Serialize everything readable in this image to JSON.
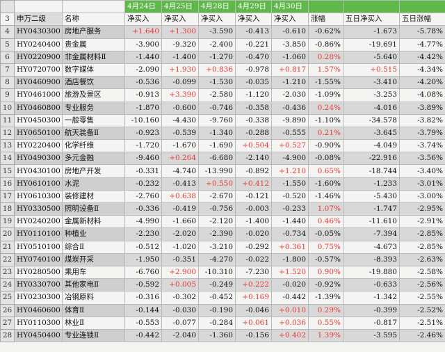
{
  "dates": [
    "4月24日",
    "4月25日",
    "4月28日",
    "4月29日",
    "4月30日"
  ],
  "headers": {
    "row_num": "3",
    "code": "申万二级",
    "name": "名称",
    "cols": [
      "净买入",
      "净买入",
      "净买入",
      "净买入",
      "净买入",
      "涨幅",
      "五日净买入",
      "五日涨幅"
    ]
  },
  "rows": [
    {
      "n": "4",
      "code": "HY0430300",
      "name": "房地产服务",
      "v": [
        "+1.640",
        "+1.300",
        "-3.590",
        "-0.413",
        "-0.610",
        "-0.62%",
        "-1.673",
        "-5.78%"
      ]
    },
    {
      "n": "5",
      "code": "HY0240400",
      "name": "贵金属",
      "v": [
        "-3.900",
        "-9.320",
        "-2.400",
        "-0.221",
        "-3.850",
        "-0.86%",
        "-19.691",
        "-4.77%"
      ]
    },
    {
      "n": "6",
      "code": "HY0220900",
      "name": "非金属材料Ⅱ",
      "v": [
        "-1.440",
        "-1.400",
        "-1.270",
        "-0.470",
        "-1.060",
        "0.28%",
        "-5.640",
        "-4.42%"
      ]
    },
    {
      "n": "7",
      "code": "HY0720700",
      "name": "数字媒体",
      "v": [
        "-2.090",
        "+1.930",
        "+0.836",
        "-0.978",
        "+0.817",
        "1.57%",
        "+0.515",
        "-4.34%"
      ]
    },
    {
      "n": "8",
      "code": "HY0460900",
      "name": "酒店餐饮",
      "v": [
        "-0.536",
        "-0.099",
        "-1.530",
        "-0.035",
        "-1.210",
        "-1.55%",
        "-3.410",
        "-4.20%"
      ]
    },
    {
      "n": "9",
      "code": "HY0461000",
      "name": "旅游及景区",
      "v": [
        "-0.913",
        "+3.390",
        "-2.580",
        "-1.120",
        "-2.030",
        "-1.09%",
        "-3.253",
        "-4.08%"
      ]
    },
    {
      "n": "10",
      "code": "HY0460800",
      "name": "专业服务",
      "v": [
        "-1.870",
        "-0.600",
        "-0.746",
        "-0.358",
        "-0.436",
        "0.24%",
        "-4.016",
        "-3.89%"
      ]
    },
    {
      "n": "11",
      "code": "HY0450300",
      "name": "一般零售",
      "v": [
        "-10.160",
        "-4.430",
        "-9.760",
        "-0.338",
        "-9.890",
        "-1.10%",
        "-34.578",
        "-3.82%"
      ]
    },
    {
      "n": "12",
      "code": "HY0650100",
      "name": "航天装备Ⅱ",
      "v": [
        "-0.923",
        "-0.539",
        "-1.340",
        "-0.288",
        "-0.555",
        "0.21%",
        "-3.645",
        "-3.79%"
      ]
    },
    {
      "n": "13",
      "code": "HY0220400",
      "name": "化学纤维",
      "v": [
        "-1.720",
        "-1.670",
        "-1.690",
        "+0.504",
        "+0.527",
        "-0.90%",
        "-4.049",
        "-3.74%"
      ]
    },
    {
      "n": "14",
      "code": "HY0490300",
      "name": "多元金融",
      "v": [
        "-9.460",
        "+0.264",
        "-6.680",
        "-2.140",
        "-4.900",
        "-0.08%",
        "-22.916",
        "-3.56%"
      ]
    },
    {
      "n": "15",
      "code": "HY0430100",
      "name": "房地产开发",
      "v": [
        "-0.331",
        "-4.740",
        "-13.990",
        "-0.892",
        "+1.210",
        "0.65%",
        "-18.744",
        "-3.40%"
      ]
    },
    {
      "n": "16",
      "code": "HY0610100",
      "name": "水泥",
      "v": [
        "-0.232",
        "-0.413",
        "+0.550",
        "+0.412",
        "-1.550",
        "-1.60%",
        "-1.233",
        "-3.01%"
      ]
    },
    {
      "n": "17",
      "code": "HY0610300",
      "name": "装修建材",
      "v": [
        "-2.760",
        "+0.638",
        "-2.670",
        "-0.121",
        "-0.520",
        "-1.46%",
        "-5.430",
        "-3.00%"
      ]
    },
    {
      "n": "18",
      "code": "HY0330500",
      "name": "照明设备Ⅱ",
      "v": [
        "-0.336",
        "-0.419",
        "-0.756",
        "-0.003",
        "-0.233",
        "1.07%",
        "-1.747",
        "-2.95%"
      ]
    },
    {
      "n": "19",
      "code": "HY0240200",
      "name": "金属新材料",
      "v": [
        "-4.990",
        "-1.660",
        "-2.120",
        "-1.400",
        "-1.440",
        "0.46%",
        "-11.610",
        "-2.91%"
      ]
    },
    {
      "n": "20",
      "code": "HY0110100",
      "name": "种植业",
      "v": [
        "-2.230",
        "-2.020",
        "-2.390",
        "-0.020",
        "-0.734",
        "-0.05%",
        "-7.394",
        "-2.85%"
      ]
    },
    {
      "n": "21",
      "code": "HY0510100",
      "name": "综合Ⅱ",
      "v": [
        "-0.512",
        "-1.020",
        "-3.210",
        "-0.292",
        "+0.361",
        "0.75%",
        "-4.673",
        "-2.85%"
      ]
    },
    {
      "n": "22",
      "code": "HY0740100",
      "name": "煤炭开采",
      "v": [
        "-1.950",
        "-0.351",
        "-4.270",
        "-0.022",
        "-1.800",
        "-0.57%",
        "-8.393",
        "-2.63%"
      ]
    },
    {
      "n": "23",
      "code": "HY0280500",
      "name": "乘用车",
      "v": [
        "-6.760",
        "+2.900",
        "-10.310",
        "-7.230",
        "+1.520",
        "0.90%",
        "-19.880",
        "-2.58%"
      ]
    },
    {
      "n": "24",
      "code": "HY0330700",
      "name": "其他家电Ⅱ",
      "v": [
        "-0.592",
        "+0.005",
        "-0.249",
        "+0.222",
        "-0.020",
        "-0.92%",
        "-0.633",
        "-2.56%"
      ]
    },
    {
      "n": "25",
      "code": "HY0230300",
      "name": "冶钢原料",
      "v": [
        "-0.316",
        "-0.302",
        "-0.452",
        "+0.169",
        "-0.442",
        "-1.39%",
        "-1.342",
        "-2.55%"
      ]
    },
    {
      "n": "26",
      "code": "HY0460600",
      "name": "体育Ⅱ",
      "v": [
        "-0.144",
        "-0.030",
        "-0.190",
        "-0.046",
        "+0.010",
        "0.29%",
        "-0.399",
        "-2.52%"
      ]
    },
    {
      "n": "27",
      "code": "HY0110300",
      "name": "林业Ⅱ",
      "v": [
        "-0.553",
        "-0.077",
        "-0.284",
        "+0.061",
        "+0.036",
        "0.55%",
        "-0.817",
        "-2.51%"
      ]
    },
    {
      "n": "28",
      "code": "HY0450400",
      "name": "专业连锁Ⅱ",
      "v": [
        "-0.442",
        "-2.040",
        "-1.360",
        "-0.156",
        "+0.402",
        "1.39%",
        "-3.595",
        "-2.46%"
      ]
    }
  ]
}
